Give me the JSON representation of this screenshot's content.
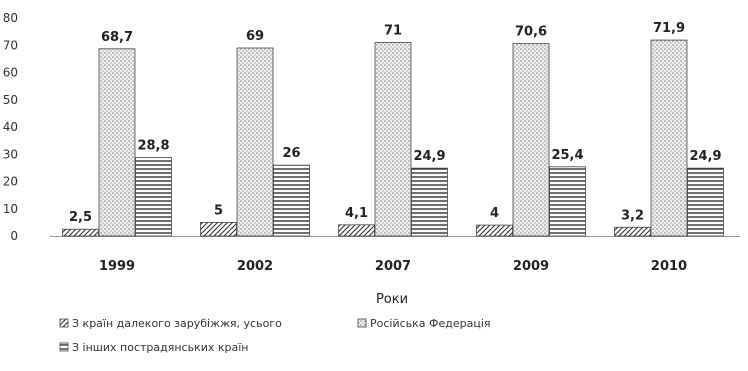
{
  "chart_data": {
    "type": "bar",
    "categories": [
      "1999",
      "2002",
      "2007",
      "2009",
      "2010"
    ],
    "series": [
      {
        "name": "З країн далекого зарубіжжя, усього",
        "values": [
          2.5,
          5,
          4.1,
          4,
          3.2
        ],
        "labels": [
          "2,5",
          "5",
          "4,1",
          "4",
          "3,2"
        ],
        "pattern": "diagonal"
      },
      {
        "name": "Російська Федерація",
        "values": [
          68.7,
          69,
          71,
          70.6,
          71.9
        ],
        "labels": [
          "68,7",
          "69",
          "71",
          "70,6",
          "71,9"
        ],
        "pattern": "dots"
      },
      {
        "name": "З інших пострадянських країн",
        "values": [
          28.8,
          26,
          24.9,
          25.4,
          24.9
        ],
        "labels": [
          "28,8",
          "26",
          "24,9",
          "25,4",
          "24,9"
        ],
        "pattern": "horizontal"
      }
    ],
    "xlabel": "Роки",
    "ylabel": "",
    "ylim": [
      0,
      80
    ],
    "yticks": [
      0,
      10,
      20,
      30,
      40,
      50,
      60,
      70,
      80
    ],
    "grid": false,
    "legend": "bottom"
  }
}
